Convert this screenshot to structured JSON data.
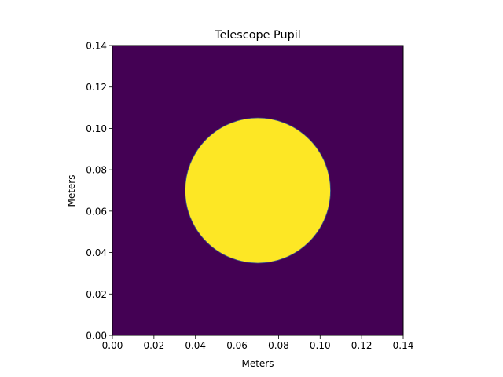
{
  "chart_data": {
    "type": "heatmap",
    "title": "Telescope Pupil",
    "xlabel": "Meters",
    "ylabel": "Meters",
    "xlim": [
      0,
      0.14
    ],
    "ylim": [
      0,
      0.14
    ],
    "xticks": [
      0.0,
      0.02,
      0.04,
      0.06,
      0.08,
      0.1,
      0.12,
      0.14
    ],
    "yticks": [
      0.0,
      0.02,
      0.04,
      0.06,
      0.08,
      0.1,
      0.12,
      0.14
    ],
    "xtick_labels": [
      "0.00",
      "0.02",
      "0.04",
      "0.06",
      "0.08",
      "0.10",
      "0.12",
      "0.14"
    ],
    "ytick_labels": [
      "0.00",
      "0.02",
      "0.04",
      "0.06",
      "0.08",
      "0.10",
      "0.12",
      "0.14"
    ],
    "pupil": {
      "center_x": 0.07,
      "center_y": 0.07,
      "radius": 0.035
    },
    "background_value": 0,
    "pupil_value": 1,
    "colors": {
      "background": "#440154",
      "pupil": "#fde725",
      "edge": "#3b528b"
    },
    "grid": false,
    "legend": "none"
  }
}
